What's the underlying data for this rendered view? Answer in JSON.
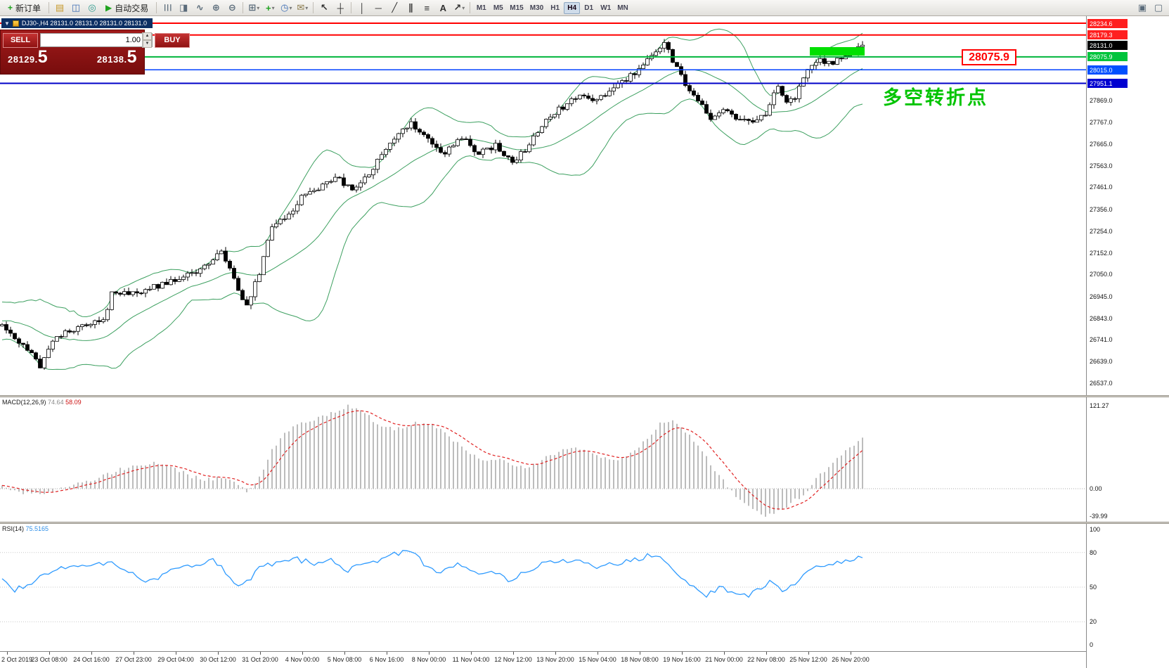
{
  "toolbar": {
    "items": [
      {
        "t": "btn",
        "name": "new-order-button",
        "glyph": "+",
        "color": "#1fa31f",
        "label": "新订单"
      },
      {
        "t": "sep"
      },
      {
        "t": "icon",
        "name": "profiles-icon",
        "glyph": "▤",
        "color": "#c79a2e"
      },
      {
        "t": "icon",
        "name": "market-watch-icon",
        "glyph": "◫",
        "color": "#3f6fb5"
      },
      {
        "t": "icon",
        "name": "navigator-icon",
        "glyph": "◎",
        "color": "#2e9b8f"
      },
      {
        "t": "btn",
        "name": "auto-trading-button",
        "glyph": "▶",
        "color": "#1fa31f",
        "label": "自动交易"
      },
      {
        "t": "sep"
      },
      {
        "t": "icon",
        "name": "bar-chart-icon",
        "glyph": "☰",
        "color": "#5a6b7a",
        "rot": 1
      },
      {
        "t": "icon",
        "name": "candlestick-icon",
        "glyph": "◨",
        "color": "#5a6b7a"
      },
      {
        "t": "icon",
        "name": "line-chart-icon",
        "glyph": "∿",
        "color": "#5a6b7a"
      },
      {
        "t": "icon",
        "name": "zoom-in-icon",
        "glyph": "⊕",
        "color": "#5a6b7a"
      },
      {
        "t": "icon",
        "name": "zoom-out-icon",
        "glyph": "⊖",
        "color": "#5a6b7a"
      },
      {
        "t": "sep"
      },
      {
        "t": "icon",
        "name": "new-chart-icon",
        "glyph": "⊞",
        "color": "#5a6b7a",
        "caret": 1
      },
      {
        "t": "icon",
        "name": "indicators-icon",
        "glyph": "+",
        "color": "#1fa31f",
        "caret": 1
      },
      {
        "t": "icon",
        "name": "periods-icon",
        "glyph": "◷",
        "color": "#3f6fb5",
        "caret": 1
      },
      {
        "t": "icon",
        "name": "templates-icon",
        "glyph": "✉",
        "color": "#8a7a4a",
        "caret": 1
      },
      {
        "t": "sep"
      },
      {
        "t": "icon",
        "name": "cursor-icon",
        "glyph": "↖",
        "color": "#303030"
      },
      {
        "t": "icon",
        "name": "crosshair-icon",
        "glyph": "┼",
        "color": "#303030"
      },
      {
        "t": "sep"
      },
      {
        "t": "icon",
        "name": "vertical-line-icon",
        "glyph": "│",
        "color": "#303030"
      },
      {
        "t": "icon",
        "name": "horizontal-line-icon",
        "glyph": "─",
        "color": "#303030"
      },
      {
        "t": "icon",
        "name": "trendline-icon",
        "glyph": "╱",
        "color": "#303030"
      },
      {
        "t": "icon",
        "name": "channel-icon",
        "glyph": "∥",
        "color": "#303030"
      },
      {
        "t": "icon",
        "name": "fibonacci-icon",
        "glyph": "≡",
        "color": "#303030"
      },
      {
        "t": "icon",
        "name": "text-icon",
        "glyph": "A",
        "color": "#303030"
      },
      {
        "t": "icon",
        "name": "arrows-icon",
        "glyph": "↗",
        "color": "#303030",
        "caret": 1
      },
      {
        "t": "sep"
      },
      {
        "t": "tfs"
      },
      {
        "t": "spacer"
      },
      {
        "t": "icon",
        "name": "tile-windows-icon",
        "glyph": "▣",
        "color": "#5a6b7a"
      },
      {
        "t": "icon",
        "name": "cascade-windows-icon",
        "glyph": "▢",
        "color": "#5a6b7a"
      }
    ],
    "timeframes": [
      "M1",
      "M5",
      "M15",
      "M30",
      "H1",
      "H4",
      "D1",
      "W1",
      "MN"
    ],
    "active_timeframe": "H4"
  },
  "symbol_bar": {
    "text": "DJ30-,H4  28131.0 28131.0 28131.0 28131.0"
  },
  "trade_panel": {
    "sell_label": "SELL",
    "buy_label": "BUY",
    "volume": "1.00",
    "sell_price_int": "28129.",
    "sell_price_dec": "5",
    "buy_price_int": "28138.",
    "buy_price_dec": "5"
  },
  "chart": {
    "annotation_text": "多空转折点",
    "price_tag": "28075.9",
    "levels": [
      {
        "price": 28234.6,
        "color": "#ff0000",
        "width": 2
      },
      {
        "price": 28179.3,
        "color": "#ff0000",
        "width": 2
      },
      {
        "price": 28075.9,
        "color": "#00b43c",
        "width": 2
      },
      {
        "price": 28015.0,
        "color": "#0040ff",
        "width": 1.5
      },
      {
        "price": 27951.1,
        "color": "#0000c8",
        "width": 2
      }
    ],
    "current_price": 28131.0,
    "axis_boxes": [
      {
        "text": "28234.6",
        "bg": "#ff1f1f"
      },
      {
        "text": "28179.3",
        "bg": "#ff1f1f"
      },
      {
        "text": "28131.0",
        "bg": "#000000"
      },
      {
        "text": "28075.9",
        "bg": "#00c43c"
      },
      {
        "text": "28015.0",
        "bg": "#0050ff"
      },
      {
        "text": "27951.1",
        "bg": "#0000d0"
      }
    ],
    "axis_ticks": [
      27869.0,
      27767.0,
      27665.0,
      27563.0,
      27461.0,
      27356.0,
      27254.0,
      27152.0,
      27050.0,
      26945.0,
      26843.0,
      26741.0,
      26639.0,
      26537.0
    ],
    "highlight_box": {
      "from_index": 192,
      "to_index": 205,
      "price_top": 28122,
      "price_bottom": 28082,
      "color": "#00e000"
    }
  },
  "macd": {
    "label": "MACD(12,26,9)",
    "value_main": "74.64",
    "value_signal": "58.09",
    "axis": [
      "121.27",
      "0.00",
      "-39.99"
    ]
  },
  "rsi": {
    "label": "RSI(14)",
    "value": "75.5165",
    "axis": [
      100,
      80,
      50,
      20,
      0
    ]
  },
  "time_axis": [
    "2 Oct 2019",
    "23 Oct 08:00",
    "24 Oct 16:00",
    "27 Oct 23:00",
    "29 Oct 04:00",
    "30 Oct 12:00",
    "31 Oct 20:00",
    "4 Nov 00:00",
    "5 Nov 08:00",
    "6 Nov 16:00",
    "8 Nov 00:00",
    "11 Nov 04:00",
    "12 Nov 12:00",
    "13 Nov 20:00",
    "15 Nov 04:00",
    "18 Nov 08:00",
    "19 Nov 16:00",
    "21 Nov 00:00",
    "22 Nov 08:00",
    "25 Nov 12:00",
    "26 Nov 20:00"
  ],
  "chart_data": {
    "type": "candlestick",
    "symbol": "DJ30-",
    "timeframe": "H4",
    "ohlc_display": [
      "28131.0",
      "28131.0",
      "28131.0",
      "28131.0"
    ],
    "bid": "28129.5",
    "ask": "28138.5",
    "price_range": {
      "max": 28234.6,
      "min": 26537.0
    },
    "candles_count": 205,
    "bollinger": {
      "period": 20,
      "deviation": 2
    },
    "price_path_anchors": [
      [
        0,
        26810
      ],
      [
        6,
        26700
      ],
      [
        9,
        26615
      ],
      [
        13,
        26760
      ],
      [
        17,
        26790
      ],
      [
        21,
        26820
      ],
      [
        24,
        26830
      ],
      [
        26,
        26960
      ],
      [
        31,
        26960
      ],
      [
        36,
        26990
      ],
      [
        41,
        27020
      ],
      [
        46,
        27060
      ],
      [
        50,
        27120
      ],
      [
        52,
        27160
      ],
      [
        55,
        27020
      ],
      [
        58,
        26900
      ],
      [
        61,
        27060
      ],
      [
        64,
        27280
      ],
      [
        68,
        27330
      ],
      [
        71,
        27410
      ],
      [
        75,
        27460
      ],
      [
        79,
        27510
      ],
      [
        83,
        27450
      ],
      [
        87,
        27520
      ],
      [
        90,
        27620
      ],
      [
        93,
        27700
      ],
      [
        97,
        27760
      ],
      [
        101,
        27690
      ],
      [
        105,
        27620
      ],
      [
        109,
        27700
      ],
      [
        113,
        27620
      ],
      [
        117,
        27660
      ],
      [
        121,
        27580
      ],
      [
        125,
        27660
      ],
      [
        129,
        27790
      ],
      [
        133,
        27840
      ],
      [
        137,
        27900
      ],
      [
        140,
        27860
      ],
      [
        145,
        27930
      ],
      [
        150,
        28000
      ],
      [
        154,
        28090
      ],
      [
        157,
        28140
      ],
      [
        159,
        28060
      ],
      [
        162,
        27950
      ],
      [
        165,
        27880
      ],
      [
        168,
        27790
      ],
      [
        171,
        27830
      ],
      [
        174,
        27780
      ],
      [
        178,
        27760
      ],
      [
        181,
        27810
      ],
      [
        184,
        27950
      ],
      [
        186,
        27860
      ],
      [
        188,
        27890
      ],
      [
        191,
        28010
      ],
      [
        194,
        28060
      ],
      [
        197,
        28050
      ],
      [
        200,
        28090
      ],
      [
        202,
        28110
      ],
      [
        204,
        28131
      ]
    ],
    "macd_anchors": [
      [
        0,
        3
      ],
      [
        4,
        -6
      ],
      [
        8,
        -9
      ],
      [
        12,
        -4
      ],
      [
        16,
        4
      ],
      [
        20,
        10
      ],
      [
        25,
        22
      ],
      [
        30,
        32
      ],
      [
        35,
        38
      ],
      [
        40,
        33
      ],
      [
        44,
        20
      ],
      [
        48,
        12
      ],
      [
        52,
        18
      ],
      [
        55,
        8
      ],
      [
        58,
        -4
      ],
      [
        61,
        16
      ],
      [
        64,
        55
      ],
      [
        67,
        82
      ],
      [
        70,
        96
      ],
      [
        74,
        102
      ],
      [
        78,
        110
      ],
      [
        82,
        121
      ],
      [
        85,
        115
      ],
      [
        88,
        100
      ],
      [
        91,
        88
      ],
      [
        94,
        88
      ],
      [
        97,
        94
      ],
      [
        100,
        98
      ],
      [
        103,
        90
      ],
      [
        106,
        76
      ],
      [
        109,
        60
      ],
      [
        112,
        47
      ],
      [
        115,
        41
      ],
      [
        118,
        43
      ],
      [
        121,
        34
      ],
      [
        124,
        30
      ],
      [
        127,
        38
      ],
      [
        130,
        50
      ],
      [
        133,
        56
      ],
      [
        136,
        58
      ],
      [
        139,
        52
      ],
      [
        142,
        44
      ],
      [
        145,
        41
      ],
      [
        148,
        46
      ],
      [
        151,
        62
      ],
      [
        154,
        82
      ],
      [
        156,
        94
      ],
      [
        158,
        100
      ],
      [
        160,
        94
      ],
      [
        163,
        78
      ],
      [
        166,
        54
      ],
      [
        169,
        28
      ],
      [
        172,
        4
      ],
      [
        175,
        -16
      ],
      [
        178,
        -31
      ],
      [
        181,
        -40
      ],
      [
        184,
        -34
      ],
      [
        186,
        -25
      ],
      [
        188,
        -17
      ],
      [
        190,
        -10
      ],
      [
        192,
        6
      ],
      [
        194,
        20
      ],
      [
        196,
        34
      ],
      [
        198,
        45
      ],
      [
        200,
        55
      ],
      [
        202,
        65
      ],
      [
        204,
        74.64
      ]
    ],
    "rsi_anchors": [
      [
        0,
        55
      ],
      [
        3,
        48
      ],
      [
        6,
        52
      ],
      [
        10,
        60
      ],
      [
        14,
        66
      ],
      [
        18,
        68
      ],
      [
        22,
        72
      ],
      [
        26,
        70
      ],
      [
        30,
        64
      ],
      [
        34,
        56
      ],
      [
        38,
        60
      ],
      [
        42,
        68
      ],
      [
        46,
        70
      ],
      [
        50,
        74
      ],
      [
        53,
        63
      ],
      [
        56,
        49
      ],
      [
        59,
        58
      ],
      [
        62,
        70
      ],
      [
        66,
        71
      ],
      [
        70,
        74
      ],
      [
        74,
        71
      ],
      [
        78,
        75
      ],
      [
        82,
        64
      ],
      [
        86,
        70
      ],
      [
        90,
        75
      ],
      [
        95,
        80
      ],
      [
        97,
        82
      ],
      [
        100,
        71
      ],
      [
        104,
        63
      ],
      [
        108,
        70
      ],
      [
        112,
        62
      ],
      [
        116,
        66
      ],
      [
        120,
        56
      ],
      [
        124,
        62
      ],
      [
        128,
        70
      ],
      [
        132,
        72
      ],
      [
        136,
        74
      ],
      [
        140,
        68
      ],
      [
        144,
        70
      ],
      [
        148,
        72
      ],
      [
        152,
        76
      ],
      [
        155,
        78
      ],
      [
        158,
        72
      ],
      [
        161,
        58
      ],
      [
        164,
        50
      ],
      [
        167,
        43
      ],
      [
        170,
        50
      ],
      [
        173,
        46
      ],
      [
        176,
        42
      ],
      [
        179,
        47
      ],
      [
        182,
        54
      ],
      [
        185,
        48
      ],
      [
        188,
        52
      ],
      [
        191,
        62
      ],
      [
        194,
        68
      ],
      [
        197,
        70
      ],
      [
        200,
        72
      ],
      [
        202,
        74
      ],
      [
        204,
        75.5
      ]
    ]
  }
}
